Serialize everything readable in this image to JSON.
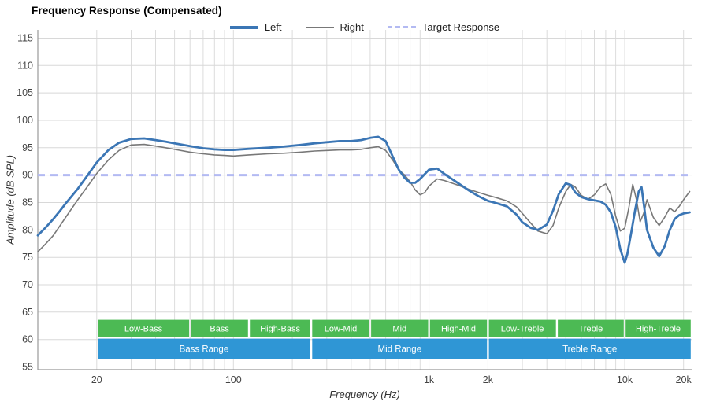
{
  "title": "Frequency Response (Compensated)",
  "legend": [
    {
      "label": "Left",
      "color": "#3b76b5",
      "style": "solid",
      "width": 4
    },
    {
      "label": "Right",
      "color": "#787878",
      "style": "solid",
      "width": 2
    },
    {
      "label": "Target Response",
      "color": "#b3baf2",
      "style": "dashed",
      "width": 3
    }
  ],
  "chart_data": {
    "type": "line",
    "title": "Frequency Response (Compensated)",
    "xlabel": "Frequency (Hz)",
    "ylabel": "Amplitude (dB SPL)",
    "xscale": "log",
    "grid": true,
    "legend_position": "top-center",
    "xlim": [
      10,
      22000
    ],
    "ylim": [
      54.5,
      116.5
    ],
    "x_ticks": [
      {
        "value": 20,
        "label": "20"
      },
      {
        "value": 100,
        "label": "100"
      },
      {
        "value": 1000,
        "label": "1k"
      },
      {
        "value": 2000,
        "label": "2k"
      },
      {
        "value": 10000,
        "label": "10k"
      },
      {
        "value": 20000,
        "label": "20k"
      }
    ],
    "y_ticks": [
      55,
      60,
      65,
      70,
      75,
      80,
      85,
      90,
      95,
      100,
      105,
      110,
      115
    ],
    "target": {
      "label": "Target Response",
      "value": 90,
      "color": "#b3baf2"
    },
    "series": [
      {
        "name": "Left",
        "color": "#3b76b5",
        "width": 2.8,
        "points": [
          [
            10,
            79
          ],
          [
            11,
            80.5
          ],
          [
            12,
            82
          ],
          [
            13,
            83.5
          ],
          [
            14,
            85
          ],
          [
            16,
            87.5
          ],
          [
            18,
            90
          ],
          [
            20,
            92.3
          ],
          [
            23,
            94.6
          ],
          [
            26,
            95.9
          ],
          [
            30,
            96.6
          ],
          [
            35,
            96.7
          ],
          [
            40,
            96.4
          ],
          [
            45,
            96.1
          ],
          [
            50,
            95.8
          ],
          [
            60,
            95.3
          ],
          [
            70,
            94.9
          ],
          [
            80,
            94.7
          ],
          [
            90,
            94.6
          ],
          [
            100,
            94.6
          ],
          [
            120,
            94.8
          ],
          [
            150,
            95.0
          ],
          [
            180,
            95.2
          ],
          [
            220,
            95.5
          ],
          [
            260,
            95.8
          ],
          [
            300,
            96.0
          ],
          [
            350,
            96.2
          ],
          [
            400,
            96.2
          ],
          [
            450,
            96.4
          ],
          [
            500,
            96.8
          ],
          [
            550,
            97.0
          ],
          [
            600,
            96.2
          ],
          [
            650,
            93.5
          ],
          [
            700,
            91.0
          ],
          [
            750,
            89.5
          ],
          [
            800,
            88.6
          ],
          [
            850,
            88.6
          ],
          [
            900,
            89.3
          ],
          [
            1000,
            91.0
          ],
          [
            1100,
            91.2
          ],
          [
            1200,
            90.2
          ],
          [
            1400,
            88.6
          ],
          [
            1600,
            87.2
          ],
          [
            1800,
            86.1
          ],
          [
            2000,
            85.3
          ],
          [
            2200,
            84.9
          ],
          [
            2500,
            84.3
          ],
          [
            2800,
            82.8
          ],
          [
            3000,
            81.4
          ],
          [
            3300,
            80.4
          ],
          [
            3600,
            80.0
          ],
          [
            4000,
            81.0
          ],
          [
            4300,
            83.5
          ],
          [
            4600,
            86.5
          ],
          [
            5000,
            88.5
          ],
          [
            5300,
            88.2
          ],
          [
            5600,
            86.8
          ],
          [
            6000,
            86.0
          ],
          [
            6500,
            85.6
          ],
          [
            7000,
            85.4
          ],
          [
            7500,
            85.2
          ],
          [
            8000,
            84.6
          ],
          [
            8500,
            83.2
          ],
          [
            9000,
            80.5
          ],
          [
            9500,
            76.5
          ],
          [
            10000,
            74.0
          ],
          [
            10300,
            75.5
          ],
          [
            10800,
            79.5
          ],
          [
            11300,
            83.5
          ],
          [
            11800,
            87.0
          ],
          [
            12200,
            87.8
          ],
          [
            12600,
            84.0
          ],
          [
            13000,
            80.0
          ],
          [
            14000,
            76.8
          ],
          [
            15000,
            75.2
          ],
          [
            16000,
            77.0
          ],
          [
            17000,
            80.0
          ],
          [
            18000,
            82.0
          ],
          [
            19000,
            82.7
          ],
          [
            20000,
            83.0
          ],
          [
            21500,
            83.2
          ]
        ]
      },
      {
        "name": "Right",
        "color": "#787878",
        "width": 1.6,
        "points": [
          [
            10,
            76
          ],
          [
            11,
            77.5
          ],
          [
            12,
            79
          ],
          [
            13,
            80.8
          ],
          [
            14,
            82.5
          ],
          [
            16,
            85.5
          ],
          [
            18,
            88
          ],
          [
            20,
            90.3
          ],
          [
            23,
            92.8
          ],
          [
            26,
            94.5
          ],
          [
            30,
            95.5
          ],
          [
            35,
            95.6
          ],
          [
            40,
            95.3
          ],
          [
            45,
            95.0
          ],
          [
            50,
            94.7
          ],
          [
            60,
            94.2
          ],
          [
            70,
            93.9
          ],
          [
            80,
            93.7
          ],
          [
            90,
            93.6
          ],
          [
            100,
            93.5
          ],
          [
            120,
            93.7
          ],
          [
            150,
            93.9
          ],
          [
            180,
            94.0
          ],
          [
            220,
            94.2
          ],
          [
            260,
            94.4
          ],
          [
            300,
            94.5
          ],
          [
            350,
            94.6
          ],
          [
            400,
            94.6
          ],
          [
            450,
            94.7
          ],
          [
            500,
            95.0
          ],
          [
            550,
            95.2
          ],
          [
            600,
            94.5
          ],
          [
            650,
            92.8
          ],
          [
            700,
            91.0
          ],
          [
            750,
            90.0
          ],
          [
            800,
            88.8
          ],
          [
            850,
            87.3
          ],
          [
            900,
            86.4
          ],
          [
            950,
            86.8
          ],
          [
            1000,
            88.0
          ],
          [
            1100,
            89.3
          ],
          [
            1200,
            89.0
          ],
          [
            1400,
            88.2
          ],
          [
            1600,
            87.4
          ],
          [
            1800,
            86.8
          ],
          [
            2000,
            86.3
          ],
          [
            2200,
            85.9
          ],
          [
            2500,
            85.3
          ],
          [
            2800,
            84.2
          ],
          [
            3000,
            83.0
          ],
          [
            3300,
            81.3
          ],
          [
            3600,
            79.8
          ],
          [
            4000,
            79.3
          ],
          [
            4300,
            80.8
          ],
          [
            4600,
            84.0
          ],
          [
            5000,
            87.0
          ],
          [
            5300,
            88.3
          ],
          [
            5600,
            87.8
          ],
          [
            6000,
            86.3
          ],
          [
            6500,
            85.6
          ],
          [
            7000,
            86.4
          ],
          [
            7500,
            87.8
          ],
          [
            8000,
            88.4
          ],
          [
            8500,
            86.5
          ],
          [
            9000,
            82.5
          ],
          [
            9500,
            79.8
          ],
          [
            10000,
            80.3
          ],
          [
            10500,
            84.0
          ],
          [
            11000,
            88.3
          ],
          [
            11500,
            85.5
          ],
          [
            12000,
            81.5
          ],
          [
            12500,
            83.0
          ],
          [
            13000,
            85.5
          ],
          [
            14000,
            82.3
          ],
          [
            15000,
            80.8
          ],
          [
            16000,
            82.3
          ],
          [
            17000,
            84.0
          ],
          [
            18000,
            83.3
          ],
          [
            19000,
            84.3
          ],
          [
            20000,
            85.5
          ],
          [
            21500,
            87.0
          ]
        ]
      }
    ],
    "bands": {
      "sub_color": "#4cba54",
      "main_color": "#2f96d5",
      "sub": [
        {
          "label": "Low-Bass",
          "from": 20,
          "to": 60
        },
        {
          "label": "Bass",
          "from": 60,
          "to": 120
        },
        {
          "label": "High-Bass",
          "from": 120,
          "to": 250
        },
        {
          "label": "Low-Mid",
          "from": 250,
          "to": 500
        },
        {
          "label": "Mid",
          "from": 500,
          "to": 1000
        },
        {
          "label": "High-Mid",
          "from": 1000,
          "to": 2000
        },
        {
          "label": "Low-Treble",
          "from": 2000,
          "to": 4500
        },
        {
          "label": "Treble",
          "from": 4500,
          "to": 10000
        },
        {
          "label": "High-Treble",
          "from": 10000,
          "to": 22000
        }
      ],
      "main": [
        {
          "label": "Bass Range",
          "from": 20,
          "to": 250
        },
        {
          "label": "Mid Range",
          "from": 250,
          "to": 2000
        },
        {
          "label": "Treble Range",
          "from": 2000,
          "to": 22000
        }
      ]
    }
  }
}
